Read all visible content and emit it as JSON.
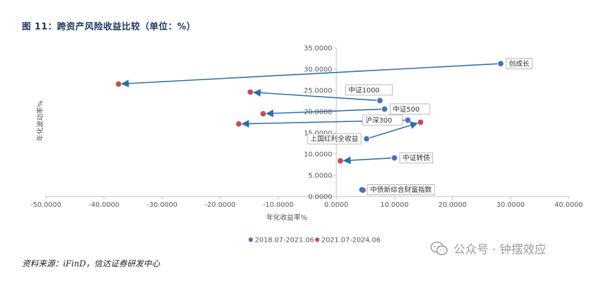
{
  "figure": {
    "title": "图 11：跨资产风险收益比较（单位：%）",
    "source": "资料来源：iFinD，信达证券研发中心",
    "watermark": "公众号 · 钟摆效应"
  },
  "colors": {
    "series1": "#4472c4",
    "series2": "#c0504d",
    "arrow": "#2e6ea6",
    "axis": "#bfbfbf"
  },
  "chart_data": {
    "type": "scatter",
    "title": "",
    "xlabel": "年化收益率%",
    "ylabel": "年化波动率%",
    "xlim": [
      -50,
      40
    ],
    "ylim": [
      0,
      35
    ],
    "x_ticks": [
      -50,
      -40,
      -30,
      -20,
      -10,
      0,
      10,
      20,
      30,
      40
    ],
    "x_tick_labels": [
      "-50.0000",
      "-40.0000",
      "-30.0000",
      "-20.0000",
      "-10.0000",
      "0.0000",
      "10.0000",
      "20.0000",
      "30.0000",
      "40.0000"
    ],
    "y_ticks": [
      0,
      5,
      10,
      15,
      20,
      25,
      30,
      35
    ],
    "y_tick_labels": [
      "0.0000",
      "5.0000",
      "10.0000",
      "15.0000",
      "20.0000",
      "25.0000",
      "30.0000",
      "35.0000"
    ],
    "legend": [
      "2018.07-2021.06",
      "2021.07-2024.06"
    ],
    "legend_position": "bottom",
    "grid": false,
    "assets": [
      {
        "label": "创成长",
        "from": [
          28.3,
          31.3
        ],
        "to": [
          -37.5,
          26.5
        ],
        "label_side": "right"
      },
      {
        "label": "中证1000",
        "from": [
          7.5,
          22.6
        ],
        "to": [
          -14.8,
          24.6
        ],
        "label_side": "above-left"
      },
      {
        "label": "中证500",
        "from": [
          8.3,
          20.6
        ],
        "to": [
          -12.6,
          19.5
        ],
        "label_side": "right"
      },
      {
        "label": "沪深300",
        "from": [
          12.3,
          18.0
        ],
        "to": [
          -16.8,
          17.1
        ],
        "label_side": "left"
      },
      {
        "label": "上国红利全收益",
        "from": [
          5.2,
          13.6
        ],
        "to": [
          14.5,
          17.5
        ],
        "label_side": "left"
      },
      {
        "label": "中证转债",
        "from": [
          10.0,
          9.1
        ],
        "to": [
          0.7,
          8.4
        ],
        "label_side": "right"
      },
      {
        "label": "中债新综合财富指数",
        "from": [
          4.4,
          1.6
        ],
        "to": [
          4.6,
          1.5
        ],
        "label_side": "right"
      }
    ]
  }
}
